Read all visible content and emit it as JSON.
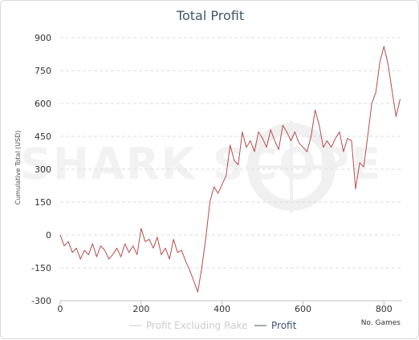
{
  "chart_data": {
    "type": "line",
    "title": "Total Profit",
    "xlabel": "No. Games",
    "ylabel": "Cumulative Total (USD)",
    "xlim": [
      0,
      845
    ],
    "ylim": [
      -300,
      900
    ],
    "xticks": [
      0,
      200,
      400,
      600,
      800
    ],
    "yticks": [
      -300,
      -150,
      0,
      150,
      300,
      450,
      600,
      750,
      900
    ],
    "grid": true,
    "legend_position": "bottom",
    "watermark": "SHARK SCOPE",
    "series": [
      {
        "name": "Profit Excluding Rake",
        "color": "#cccccc",
        "x": [],
        "y": []
      },
      {
        "name": "Profit",
        "color": "#b54d4d",
        "x": [
          0,
          10,
          20,
          30,
          40,
          50,
          60,
          70,
          80,
          90,
          100,
          110,
          120,
          130,
          140,
          150,
          160,
          170,
          180,
          190,
          200,
          210,
          220,
          230,
          240,
          250,
          260,
          270,
          280,
          290,
          300,
          310,
          320,
          330,
          340,
          350,
          360,
          370,
          380,
          390,
          400,
          410,
          420,
          430,
          440,
          450,
          460,
          470,
          480,
          490,
          500,
          510,
          520,
          530,
          540,
          550,
          560,
          570,
          580,
          590,
          600,
          610,
          620,
          630,
          640,
          650,
          660,
          670,
          680,
          690,
          700,
          710,
          720,
          730,
          740,
          750,
          760,
          770,
          780,
          790,
          800,
          810,
          820,
          830,
          840
        ],
        "y": [
          0,
          -50,
          -30,
          -80,
          -60,
          -110,
          -70,
          -90,
          -40,
          -100,
          -50,
          -70,
          -110,
          -90,
          -60,
          -100,
          -40,
          -80,
          -50,
          -90,
          30,
          -30,
          -20,
          -60,
          -10,
          -90,
          -60,
          -110,
          -20,
          -80,
          -70,
          -120,
          -160,
          -210,
          -260,
          -150,
          -10,
          150,
          220,
          190,
          230,
          270,
          410,
          340,
          320,
          470,
          400,
          430,
          380,
          470,
          440,
          400,
          480,
          430,
          390,
          500,
          470,
          430,
          470,
          420,
          400,
          380,
          450,
          570,
          500,
          400,
          430,
          400,
          440,
          470,
          380,
          440,
          430,
          210,
          330,
          310,
          450,
          600,
          650,
          790,
          860,
          780,
          660,
          540,
          620
        ]
      }
    ]
  }
}
